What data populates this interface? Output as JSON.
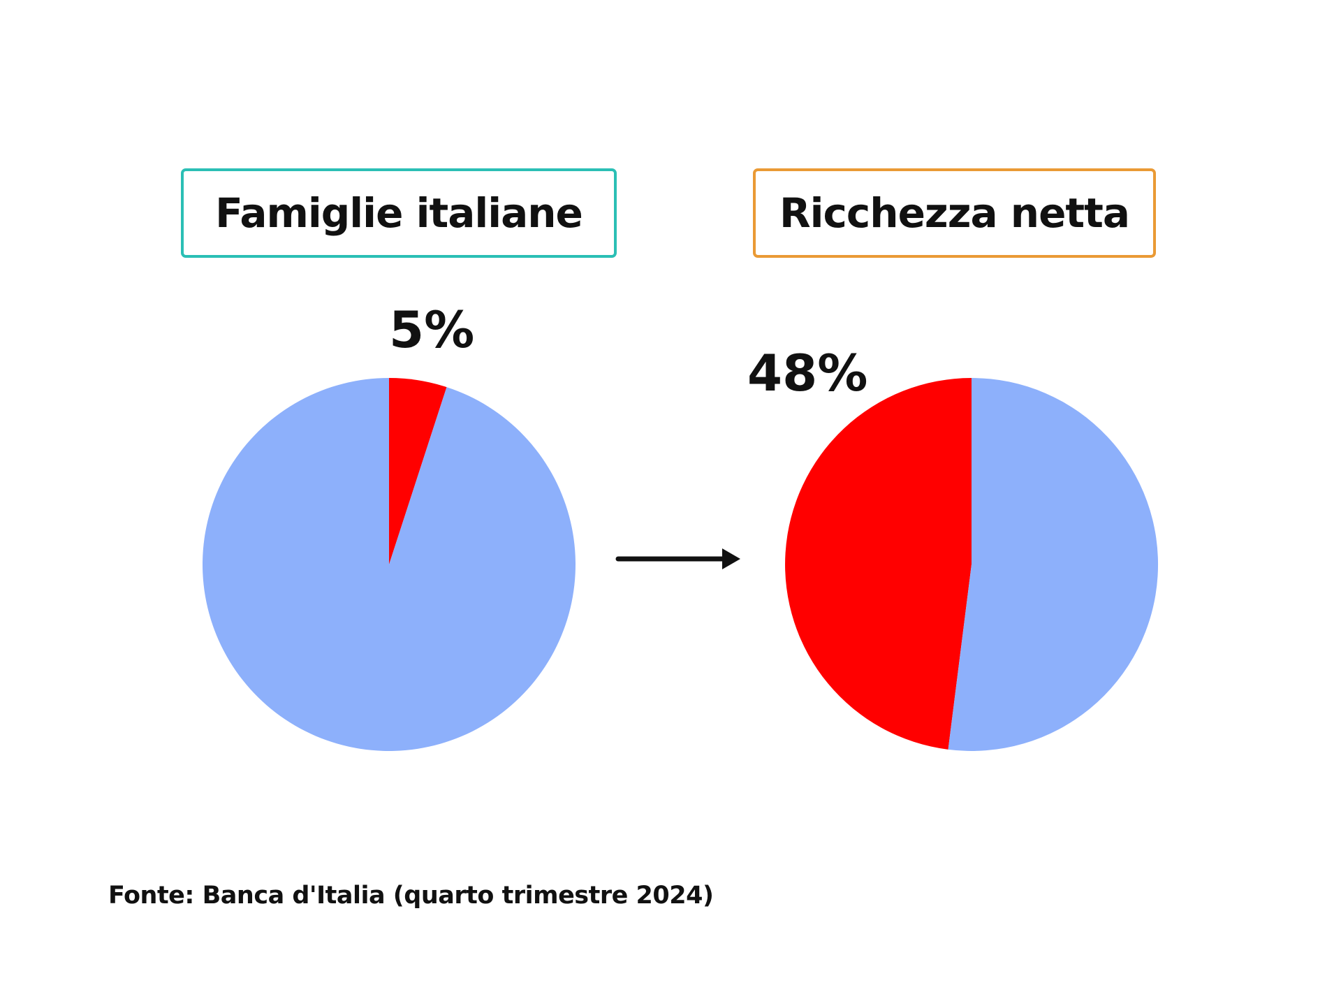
{
  "colors": {
    "highlight": "#ff0000",
    "rest": "#8db0fb",
    "left_border": "#2bbfb5",
    "right_border": "#ea9a35",
    "arrow": "#111111"
  },
  "source": "Fonte: Banca d'Italia (quarto trimestre 2024)",
  "chart_data": [
    {
      "type": "pie",
      "title": "Famiglie italiane",
      "slices": [
        {
          "value": 5,
          "label": "5%",
          "color": "#ff0000"
        },
        {
          "value": 95,
          "label": "",
          "color": "#8db0fb"
        }
      ]
    },
    {
      "type": "pie",
      "title": "Ricchezza netta",
      "slices": [
        {
          "value": 48,
          "label": "48%",
          "color": "#ff0000"
        },
        {
          "value": 52,
          "label": "",
          "color": "#8db0fb"
        }
      ]
    }
  ]
}
